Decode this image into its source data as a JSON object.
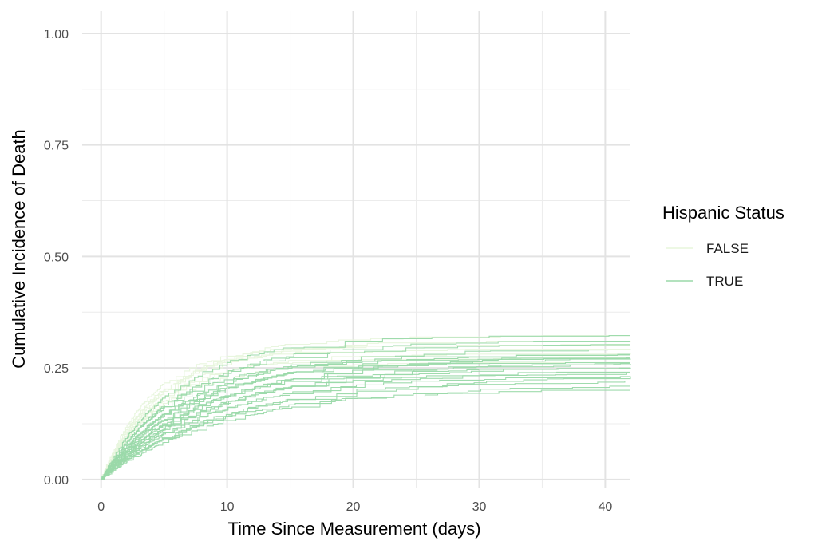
{
  "chart_data": {
    "type": "line",
    "step": true,
    "xlabel": "Time Since Measurement (days)",
    "ylabel": "Cumulative Incidence of Death",
    "xlim": [
      -1.5,
      42
    ],
    "ylim": [
      -0.02,
      1.05
    ],
    "x_ticks": [
      0,
      10,
      20,
      30,
      40
    ],
    "x_tick_labels": [
      "0",
      "10",
      "20",
      "30",
      "40"
    ],
    "y_ticks": [
      0,
      0.25,
      0.5,
      0.75,
      1.0
    ],
    "y_tick_labels": [
      "0.00",
      "0.25",
      "0.50",
      "0.75",
      "1.00"
    ],
    "grid": true,
    "legend": {
      "title": "Hispanic Status",
      "position": "right",
      "entries": [
        {
          "label": "FALSE",
          "color": "#e7f5dc"
        },
        {
          "label": "TRUE",
          "color": "#9ad9a9"
        }
      ]
    },
    "series_note_values_are_plateau_and_rate": true,
    "series": [
      {
        "group": "FALSE",
        "color": "#e7f5dc",
        "plateau": 0.32,
        "k": 0.19
      },
      {
        "group": "FALSE",
        "color": "#e7f5dc",
        "plateau": 0.3,
        "k": 0.22
      },
      {
        "group": "FALSE",
        "color": "#e7f5dc",
        "plateau": 0.29,
        "k": 0.24
      },
      {
        "group": "FALSE",
        "color": "#e7f5dc",
        "plateau": 0.28,
        "k": 0.2
      },
      {
        "group": "FALSE",
        "color": "#e7f5dc",
        "plateau": 0.27,
        "k": 0.23
      },
      {
        "group": "FALSE",
        "color": "#e7f5dc",
        "plateau": 0.31,
        "k": 0.18
      },
      {
        "group": "FALSE",
        "color": "#e7f5dc",
        "plateau": 0.26,
        "k": 0.21
      },
      {
        "group": "FALSE",
        "color": "#e7f5dc",
        "plateau": 0.3,
        "k": 0.25
      },
      {
        "group": "TRUE",
        "color": "#9ad9a9",
        "plateau": 0.32,
        "k": 0.17
      },
      {
        "group": "TRUE",
        "color": "#9ad9a9",
        "plateau": 0.31,
        "k": 0.15
      },
      {
        "group": "TRUE",
        "color": "#9ad9a9",
        "plateau": 0.3,
        "k": 0.16
      },
      {
        "group": "TRUE",
        "color": "#9ad9a9",
        "plateau": 0.29,
        "k": 0.14
      },
      {
        "group": "TRUE",
        "color": "#9ad9a9",
        "plateau": 0.28,
        "k": 0.15
      },
      {
        "group": "TRUE",
        "color": "#9ad9a9",
        "plateau": 0.28,
        "k": 0.13
      },
      {
        "group": "TRUE",
        "color": "#9ad9a9",
        "plateau": 0.27,
        "k": 0.14
      },
      {
        "group": "TRUE",
        "color": "#9ad9a9",
        "plateau": 0.27,
        "k": 0.12
      },
      {
        "group": "TRUE",
        "color": "#9ad9a9",
        "plateau": 0.26,
        "k": 0.13
      },
      {
        "group": "TRUE",
        "color": "#9ad9a9",
        "plateau": 0.26,
        "k": 0.11
      },
      {
        "group": "TRUE",
        "color": "#9ad9a9",
        "plateau": 0.25,
        "k": 0.12
      },
      {
        "group": "TRUE",
        "color": "#9ad9a9",
        "plateau": 0.25,
        "k": 0.14
      },
      {
        "group": "TRUE",
        "color": "#9ad9a9",
        "plateau": 0.24,
        "k": 0.11
      },
      {
        "group": "TRUE",
        "color": "#9ad9a9",
        "plateau": 0.24,
        "k": 0.13
      },
      {
        "group": "TRUE",
        "color": "#9ad9a9",
        "plateau": 0.23,
        "k": 0.12
      },
      {
        "group": "TRUE",
        "color": "#9ad9a9",
        "plateau": 0.23,
        "k": 0.1
      },
      {
        "group": "TRUE",
        "color": "#9ad9a9",
        "plateau": 0.22,
        "k": 0.11
      },
      {
        "group": "TRUE",
        "color": "#9ad9a9",
        "plateau": 0.21,
        "k": 0.1
      },
      {
        "group": "TRUE",
        "color": "#9ad9a9",
        "plateau": 0.2,
        "k": 0.12
      },
      {
        "group": "TRUE",
        "color": "#9ad9a9",
        "plateau": 0.26,
        "k": 0.16
      },
      {
        "group": "TRUE",
        "color": "#9ad9a9",
        "plateau": 0.27,
        "k": 0.18
      }
    ]
  }
}
